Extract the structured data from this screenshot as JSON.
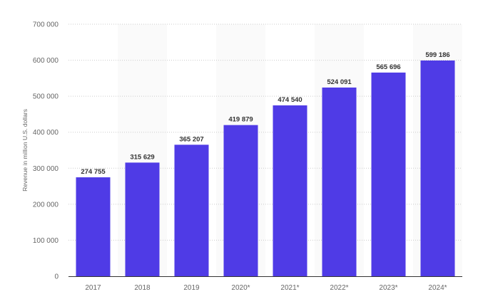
{
  "chart_data": {
    "type": "bar",
    "categories": [
      "2017",
      "2018",
      "2019",
      "2020*",
      "2021*",
      "2022*",
      "2023*",
      "2024*"
    ],
    "values": [
      274755,
      315629,
      365207,
      419879,
      474540,
      524091,
      565696,
      599186
    ],
    "value_labels": [
      "274 755",
      "315 629",
      "365 207",
      "419 879",
      "474 540",
      "524 091",
      "565 696",
      "599 186"
    ],
    "ylabel": "Revenue in million U.S. dollars",
    "xlabel": "",
    "ylim": [
      0,
      700000
    ],
    "yticks": [
      0,
      100000,
      200000,
      300000,
      400000,
      500000,
      600000,
      700000
    ],
    "ytick_labels": [
      "0",
      "100 000",
      "200 000",
      "300 000",
      "400 000",
      "500 000",
      "600 000",
      "700 000"
    ],
    "grid": true,
    "colors": {
      "bar": "#4f3be6",
      "grid": "#cccccc",
      "axis": "#333333"
    }
  }
}
